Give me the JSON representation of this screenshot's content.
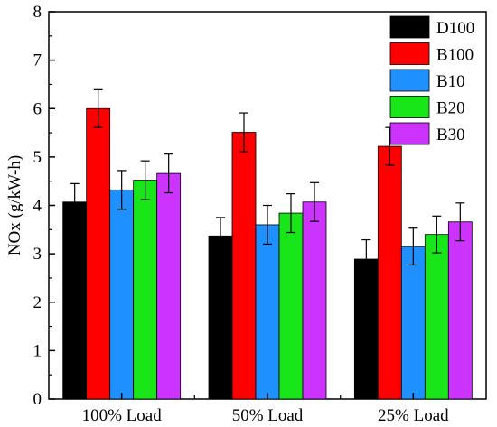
{
  "chart_data": {
    "type": "bar",
    "title": "",
    "xlabel": "",
    "ylabel": "NOx (g/kW-h)",
    "ylim": [
      0,
      8
    ],
    "yticks": [
      0,
      1,
      2,
      3,
      4,
      5,
      6,
      7,
      8
    ],
    "grid": false,
    "legend_position": "top-right",
    "categories": [
      "100% Load",
      "50% Load",
      "25% Load"
    ],
    "series": [
      {
        "name": "D100",
        "color": "#000000",
        "values": [
          4.07,
          3.37,
          2.89
        ],
        "errors": [
          0.38,
          0.38,
          0.4
        ]
      },
      {
        "name": "B100",
        "color": "#ff0000",
        "values": [
          6.0,
          5.51,
          5.22
        ],
        "errors": [
          0.39,
          0.4,
          0.39
        ]
      },
      {
        "name": "B10",
        "color": "#1e90ff",
        "values": [
          4.32,
          3.6,
          3.15
        ],
        "errors": [
          0.4,
          0.4,
          0.38
        ]
      },
      {
        "name": "B20",
        "color": "#19e619",
        "values": [
          4.52,
          3.84,
          3.4
        ],
        "errors": [
          0.4,
          0.4,
          0.38
        ]
      },
      {
        "name": "B30",
        "color": "#cc33ff",
        "values": [
          4.66,
          4.07,
          3.66
        ],
        "errors": [
          0.4,
          0.4,
          0.39
        ]
      }
    ]
  }
}
